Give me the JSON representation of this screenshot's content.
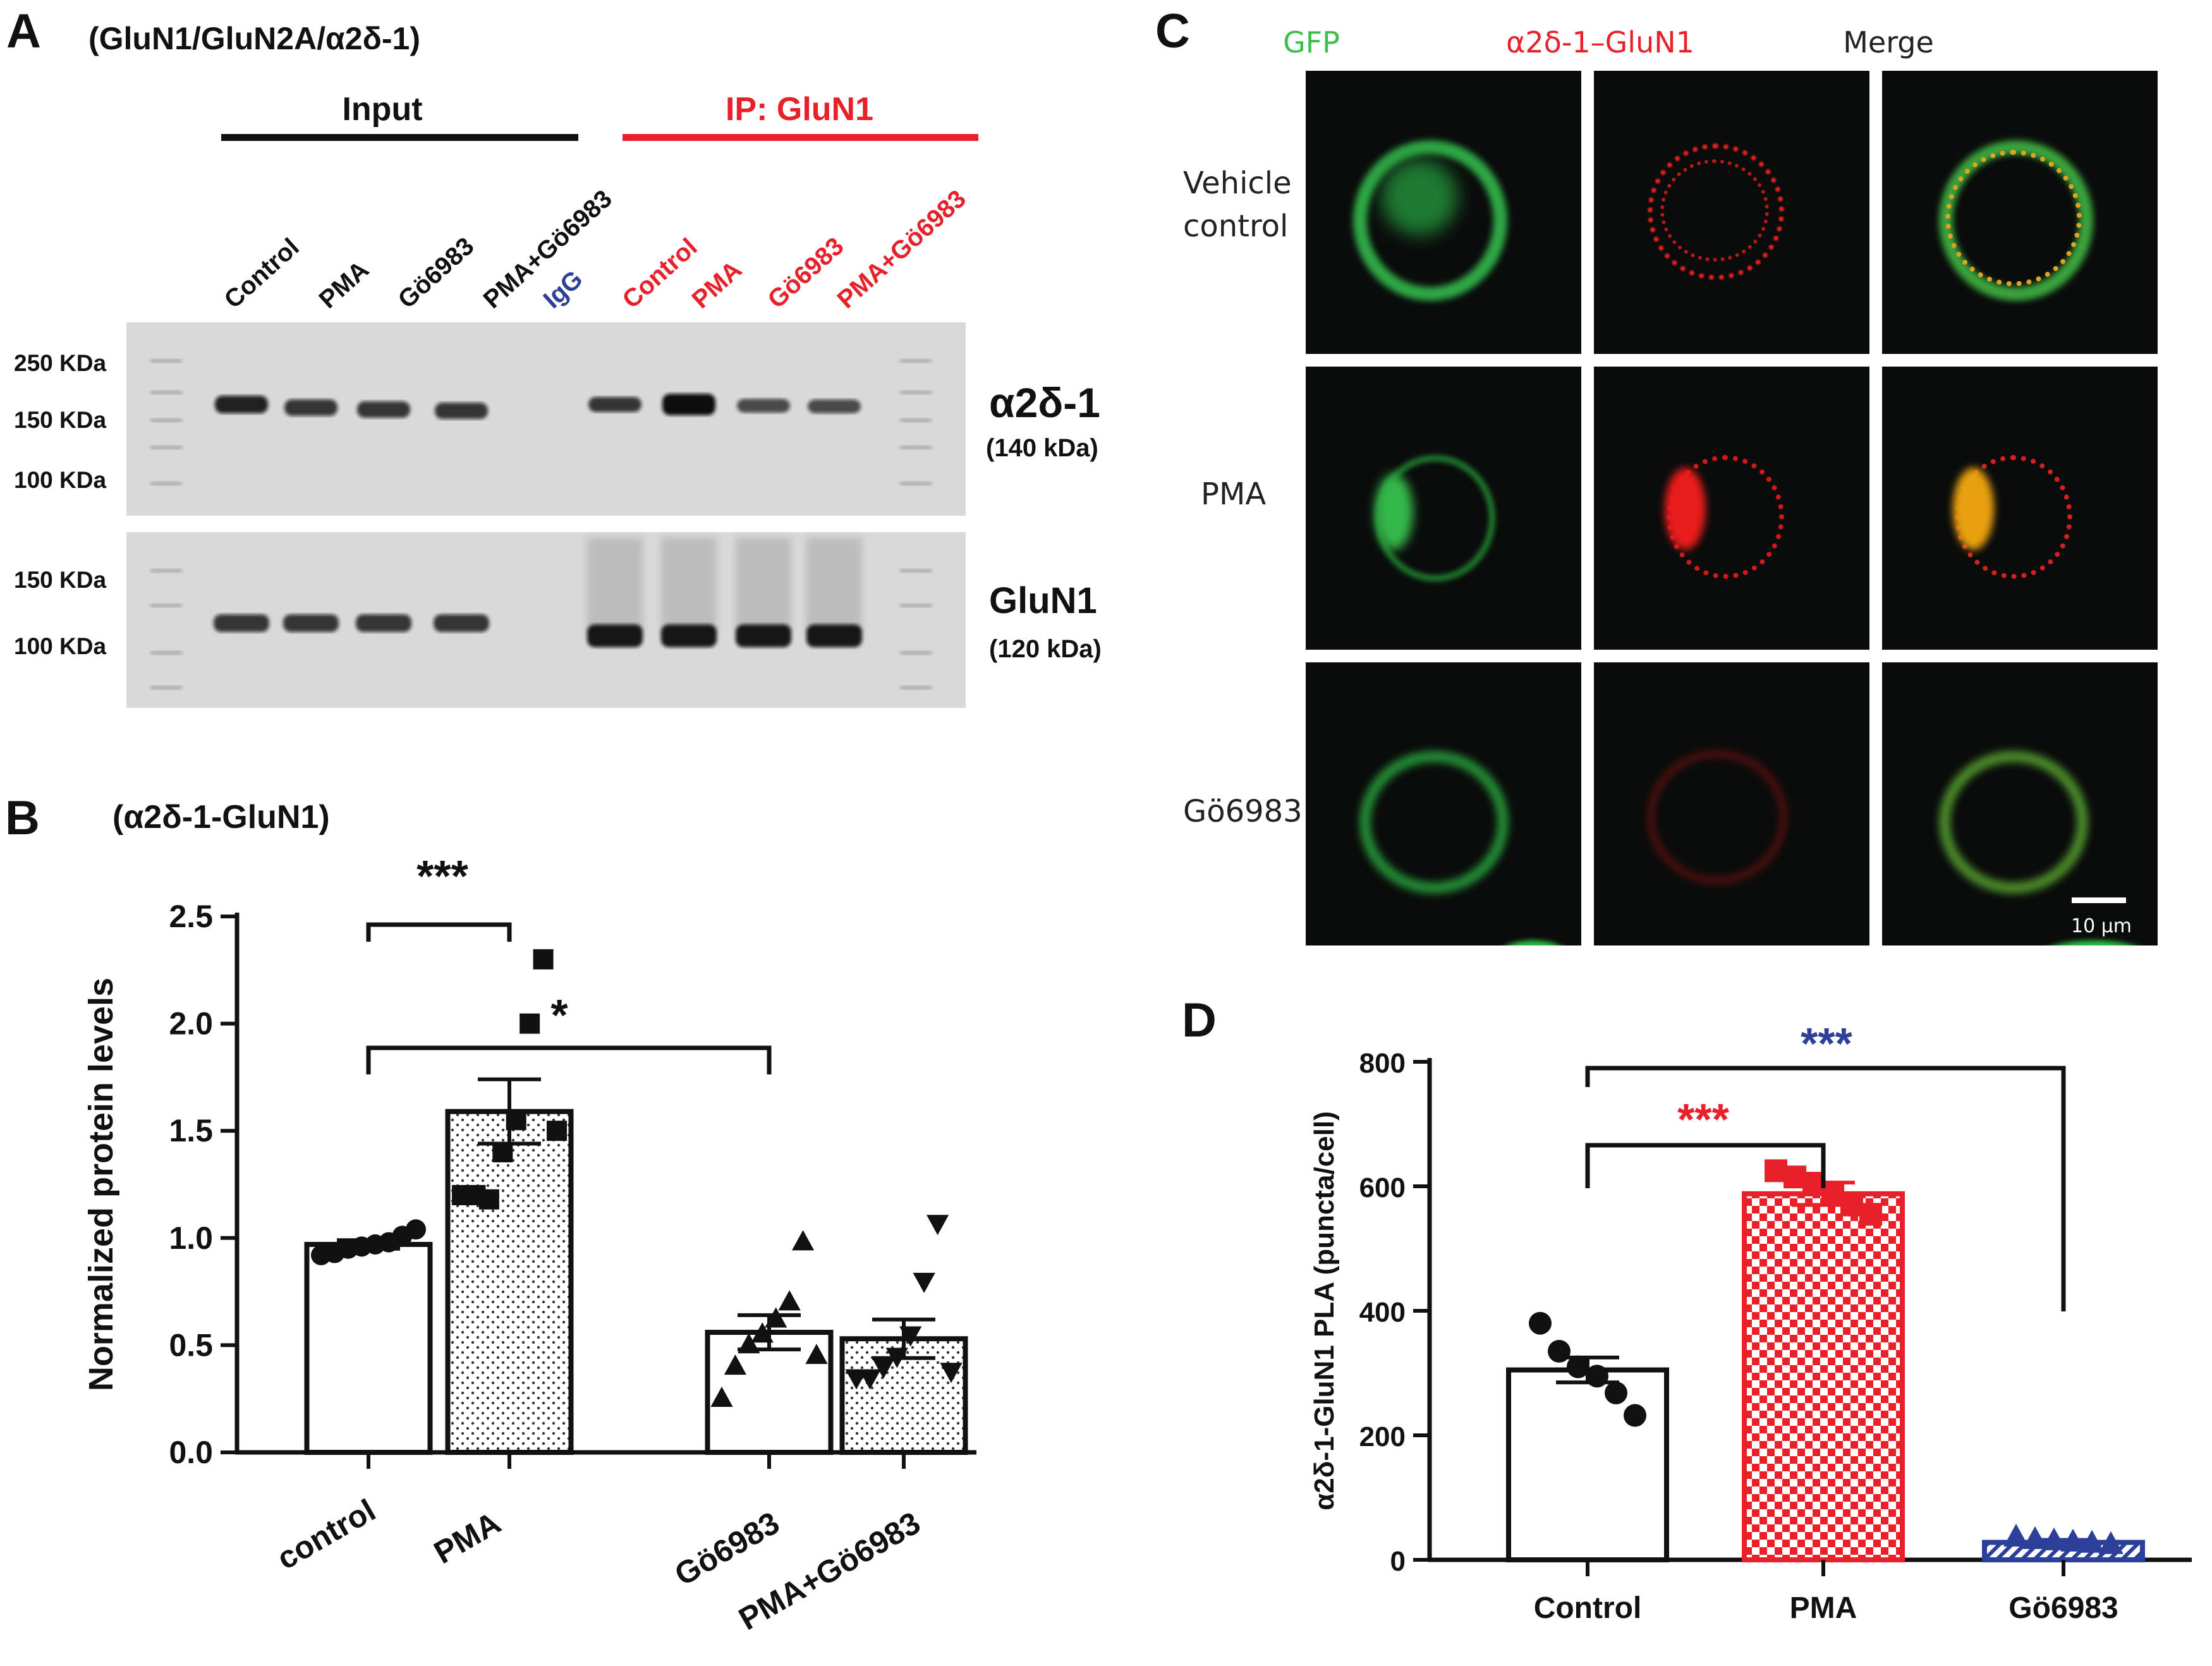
{
  "panel_letters": {
    "A": "A",
    "B": "B",
    "C": "C",
    "D": "D"
  },
  "colors": {
    "black": "#111111",
    "red": "#e8202a",
    "blue": "#2c3f99",
    "green": "#3bbf4b"
  },
  "panelA": {
    "title": "(GluN1/GluN2A/α2δ-1)",
    "input_label": "Input",
    "ip_label": "IP: GluN1",
    "lanes": [
      {
        "label": "Control",
        "color": "black"
      },
      {
        "label": "PMA",
        "color": "black"
      },
      {
        "label": "Gö6983",
        "color": "black"
      },
      {
        "label": "PMA+Gö6983",
        "color": "black"
      },
      {
        "label": "IgG",
        "color": "blue"
      },
      {
        "label": "Control",
        "color": "red"
      },
      {
        "label": "PMA",
        "color": "red"
      },
      {
        "label": "Gö6983",
        "color": "red"
      },
      {
        "label": "PMA+Gö6983",
        "color": "red"
      }
    ],
    "blot_top": {
      "markers": [
        "250 KDa",
        "150 KDa",
        "100 KDa"
      ],
      "protein": "α2δ-1",
      "size": "(140 kDa)"
    },
    "blot_bottom": {
      "markers": [
        "150 KDa",
        "100 KDa"
      ],
      "protein": "GluN1",
      "size": "(120 kDa)"
    }
  },
  "panelC": {
    "columns": [
      {
        "label": "GFP",
        "color": "green"
      },
      {
        "label": "α2δ-1–GluN1",
        "color": "red"
      },
      {
        "label": "Merge",
        "color": "black"
      }
    ],
    "rows": [
      "Vehicle\ncontrol",
      "PMA",
      "Gö6983"
    ],
    "scale_bar": "10 µm"
  },
  "chart_data": [
    {
      "id": "B",
      "type": "bar",
      "title": "(α2δ-1-GluN1)",
      "ylabel": "Normalized protein levels",
      "xlabel": "",
      "ylim": [
        0,
        2.5
      ],
      "yticks": [
        "0.0",
        "0.5",
        "1.0",
        "1.5",
        "2.0",
        "2.5"
      ],
      "categories": [
        "control",
        "PMA",
        "Gö6983",
        "PMA+Gö6983"
      ],
      "values": [
        0.97,
        1.59,
        0.56,
        0.53
      ],
      "sem": [
        0.02,
        0.15,
        0.08,
        0.09
      ],
      "points": [
        [
          0.92,
          0.93,
          0.95,
          0.96,
          0.97,
          0.98,
          1.01,
          1.04
        ],
        [
          1.2,
          1.2,
          1.18,
          1.4,
          1.55,
          2.0,
          2.3,
          1.5
        ],
        [
          0.25,
          0.4,
          0.5,
          0.55,
          0.62,
          0.7,
          0.98,
          0.45
        ],
        [
          0.35,
          0.35,
          0.4,
          0.45,
          0.55,
          0.8,
          1.07,
          0.38
        ]
      ],
      "significance": [
        {
          "between": [
            "control",
            "PMA"
          ],
          "label": "***"
        },
        {
          "between": [
            "control",
            "Gö6983"
          ],
          "label": "*"
        }
      ],
      "grid": false
    },
    {
      "id": "D",
      "type": "bar",
      "title": "",
      "ylabel": "α2δ-1-GluN1 PLA (puncta/cell)",
      "xlabel": "",
      "ylim": [
        0,
        800
      ],
      "yticks": [
        "0",
        "200",
        "400",
        "600",
        "800"
      ],
      "categories": [
        "Control",
        "PMA",
        "Gö6983"
      ],
      "values": [
        305,
        588,
        28
      ],
      "sem": [
        20,
        18,
        4
      ],
      "points": [
        [
          380,
          335,
          310,
          295,
          268,
          232
        ],
        [
          625,
          615,
          605,
          590,
          570,
          555
        ],
        [
          36,
          32,
          30,
          28,
          26,
          24
        ]
      ],
      "significance": [
        {
          "between": [
            "Control",
            "PMA"
          ],
          "label": "***",
          "color": "red"
        },
        {
          "between": [
            "Control",
            "Gö6983"
          ],
          "label": "***",
          "color": "blue"
        }
      ],
      "grid": false
    }
  ]
}
